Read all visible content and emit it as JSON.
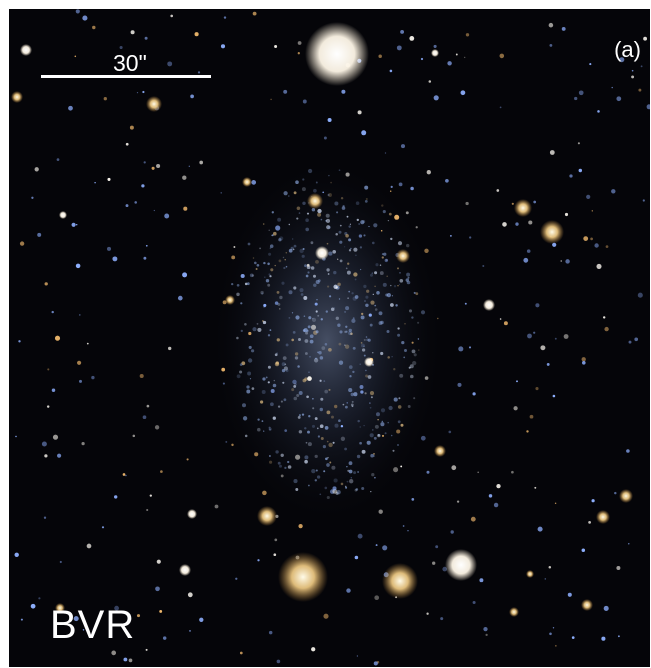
{
  "image": {
    "panel_label": "(a)",
    "filters_label": "BVR",
    "scale_bar_label": "30\""
  },
  "colors": {
    "sky": "#050509",
    "galaxy_glow": "#8ea7d6",
    "bright_star": "#fff6df",
    "warm_star": "#f0c070",
    "label": "#ffffff"
  }
}
